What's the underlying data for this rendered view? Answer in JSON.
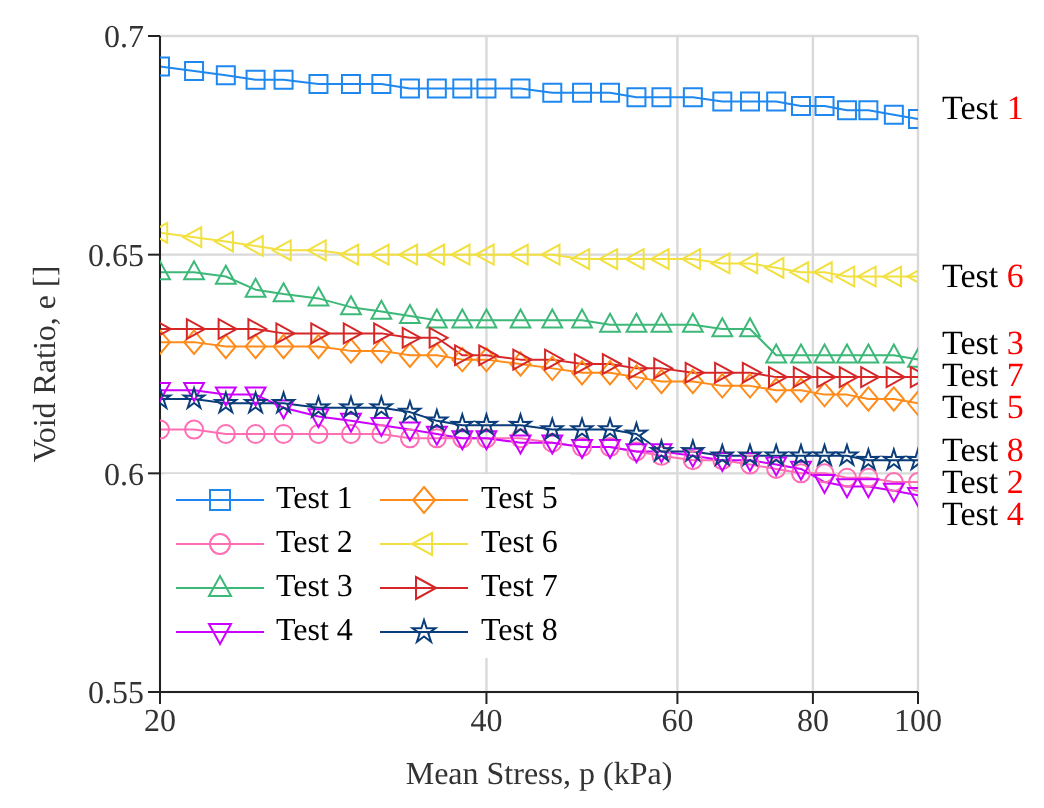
{
  "chart_data": {
    "type": "line",
    "xlabel": "Mean Stress, p (kPa)",
    "ylabel": "Void Ratio, e []",
    "x": [
      20,
      21.5,
      23,
      24.5,
      26,
      28,
      30,
      32,
      34,
      36,
      38,
      40,
      43,
      46,
      49,
      52,
      55,
      58,
      62,
      66,
      70,
      74,
      78,
      82,
      86,
      90,
      95,
      100
    ],
    "log": "x",
    "xlim": [
      20,
      100
    ],
    "xticks": [
      20,
      40,
      60,
      80,
      100
    ],
    "ylim": [
      0.55,
      0.7
    ],
    "yticks": [
      0.55,
      0.6,
      0.65,
      0.7
    ],
    "grid": true,
    "legend": "bottom left",
    "line_style": "solid",
    "series": [
      {
        "name": "Test 1",
        "color": "#1e88f0",
        "marker": "square",
        "values": [
          0.693,
          0.692,
          0.691,
          0.69,
          0.69,
          0.689,
          0.689,
          0.689,
          0.688,
          0.688,
          0.688,
          0.688,
          0.688,
          0.687,
          0.687,
          0.687,
          0.686,
          0.686,
          0.686,
          0.685,
          0.685,
          0.685,
          0.684,
          0.684,
          0.683,
          0.683,
          0.682,
          0.681
        ]
      },
      {
        "name": "Test 2",
        "color": "#ff6eb4",
        "marker": "circle",
        "values": [
          0.61,
          0.61,
          0.609,
          0.609,
          0.609,
          0.609,
          0.609,
          0.609,
          0.608,
          0.608,
          0.608,
          0.608,
          0.608,
          0.607,
          0.606,
          0.606,
          0.605,
          0.604,
          0.603,
          0.603,
          0.602,
          0.601,
          0.6,
          0.6,
          0.599,
          0.599,
          0.598,
          0.598
        ]
      },
      {
        "name": "Test 3",
        "color": "#3cb878",
        "marker": "triangle",
        "values": [
          0.646,
          0.646,
          0.645,
          0.642,
          0.641,
          0.64,
          0.638,
          0.637,
          0.636,
          0.635,
          0.635,
          0.635,
          0.635,
          0.635,
          0.635,
          0.634,
          0.634,
          0.634,
          0.634,
          0.633,
          0.633,
          0.627,
          0.627,
          0.627,
          0.627,
          0.627,
          0.627,
          0.626
        ]
      },
      {
        "name": "Test 4",
        "color": "#cc00ff",
        "marker": "triangle-down",
        "values": [
          0.619,
          0.619,
          0.618,
          0.618,
          0.615,
          0.613,
          0.612,
          0.611,
          0.61,
          0.609,
          0.608,
          0.608,
          0.607,
          0.607,
          0.606,
          0.606,
          0.605,
          0.605,
          0.604,
          0.603,
          0.603,
          0.602,
          0.601,
          0.598,
          0.597,
          0.597,
          0.596,
          0.595
        ]
      },
      {
        "name": "Test 5",
        "color": "#ff8c1a",
        "marker": "diamond",
        "values": [
          0.63,
          0.63,
          0.629,
          0.629,
          0.629,
          0.629,
          0.628,
          0.628,
          0.627,
          0.627,
          0.626,
          0.626,
          0.625,
          0.624,
          0.623,
          0.623,
          0.622,
          0.621,
          0.621,
          0.62,
          0.62,
          0.619,
          0.619,
          0.618,
          0.618,
          0.617,
          0.617,
          0.616
        ]
      },
      {
        "name": "Test 6",
        "color": "#f2e040",
        "marker": "triangle-left",
        "values": [
          0.655,
          0.654,
          0.653,
          0.652,
          0.651,
          0.651,
          0.65,
          0.65,
          0.65,
          0.65,
          0.65,
          0.65,
          0.65,
          0.65,
          0.649,
          0.649,
          0.649,
          0.649,
          0.649,
          0.648,
          0.648,
          0.647,
          0.646,
          0.646,
          0.645,
          0.645,
          0.645,
          0.645
        ]
      },
      {
        "name": "Test 7",
        "color": "#d62728",
        "marker": "triangle-right",
        "values": [
          0.633,
          0.633,
          0.633,
          0.633,
          0.632,
          0.632,
          0.632,
          0.632,
          0.631,
          0.631,
          0.627,
          0.627,
          0.626,
          0.626,
          0.625,
          0.625,
          0.624,
          0.624,
          0.623,
          0.623,
          0.623,
          0.622,
          0.622,
          0.622,
          0.622,
          0.622,
          0.622,
          0.622
        ]
      },
      {
        "name": "Test 8",
        "color": "#0b3d7a",
        "marker": "star",
        "values": [
          0.617,
          0.617,
          0.616,
          0.616,
          0.616,
          0.615,
          0.615,
          0.615,
          0.614,
          0.612,
          0.611,
          0.611,
          0.611,
          0.61,
          0.61,
          0.61,
          0.609,
          0.605,
          0.605,
          0.604,
          0.604,
          0.604,
          0.604,
          0.604,
          0.604,
          0.603,
          0.603,
          0.603
        ]
      }
    ],
    "annotations": [
      "Test 1",
      "Test 6",
      "Test 3",
      "Test 7",
      "Test 5",
      "Test 8",
      "Test 2",
      "Test 4"
    ]
  }
}
